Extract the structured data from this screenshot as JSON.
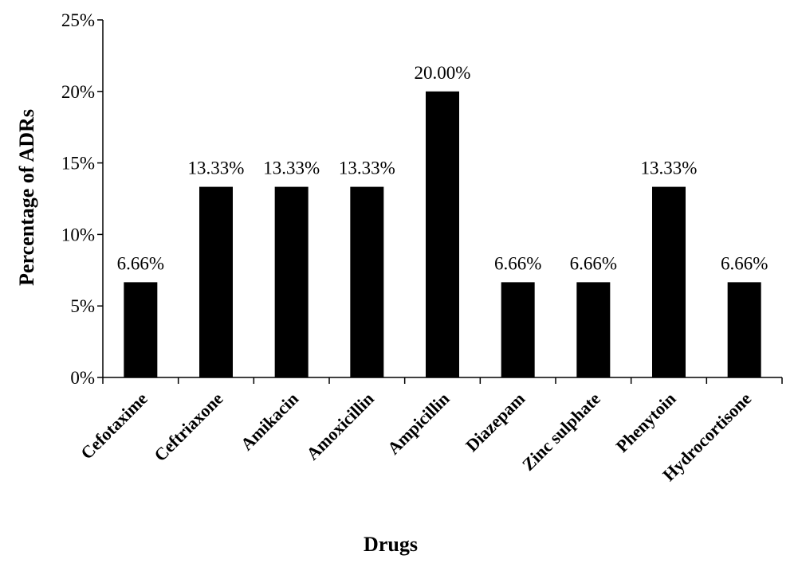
{
  "chart_data": {
    "type": "bar",
    "title": "",
    "xlabel": "Drugs",
    "ylabel": "Percentage of  ADRs",
    "ylim": [
      0,
      25
    ],
    "yticks": [
      0,
      5,
      10,
      15,
      20,
      25
    ],
    "ytick_labels": [
      "0%",
      "5%",
      "10%",
      "15%",
      "20%",
      "25%"
    ],
    "grid": false,
    "legend": "none",
    "bar_color": "#000000",
    "categories": [
      "Cefotaxime",
      "Ceftriaxone",
      "Amikacin",
      "Amoxicillin",
      "Ampicillin",
      "Diazepam",
      "Zinc sulphate",
      "Phenytoin",
      "Hydrocortisone"
    ],
    "values": [
      6.66,
      13.33,
      13.33,
      13.33,
      20.0,
      6.66,
      6.66,
      13.33,
      6.66
    ],
    "data_labels": [
      "6.66%",
      "13.33%",
      "13.33%",
      "13.33%",
      "20.00%",
      "6.66%",
      "6.66%",
      "13.33%",
      "6.66%"
    ]
  }
}
